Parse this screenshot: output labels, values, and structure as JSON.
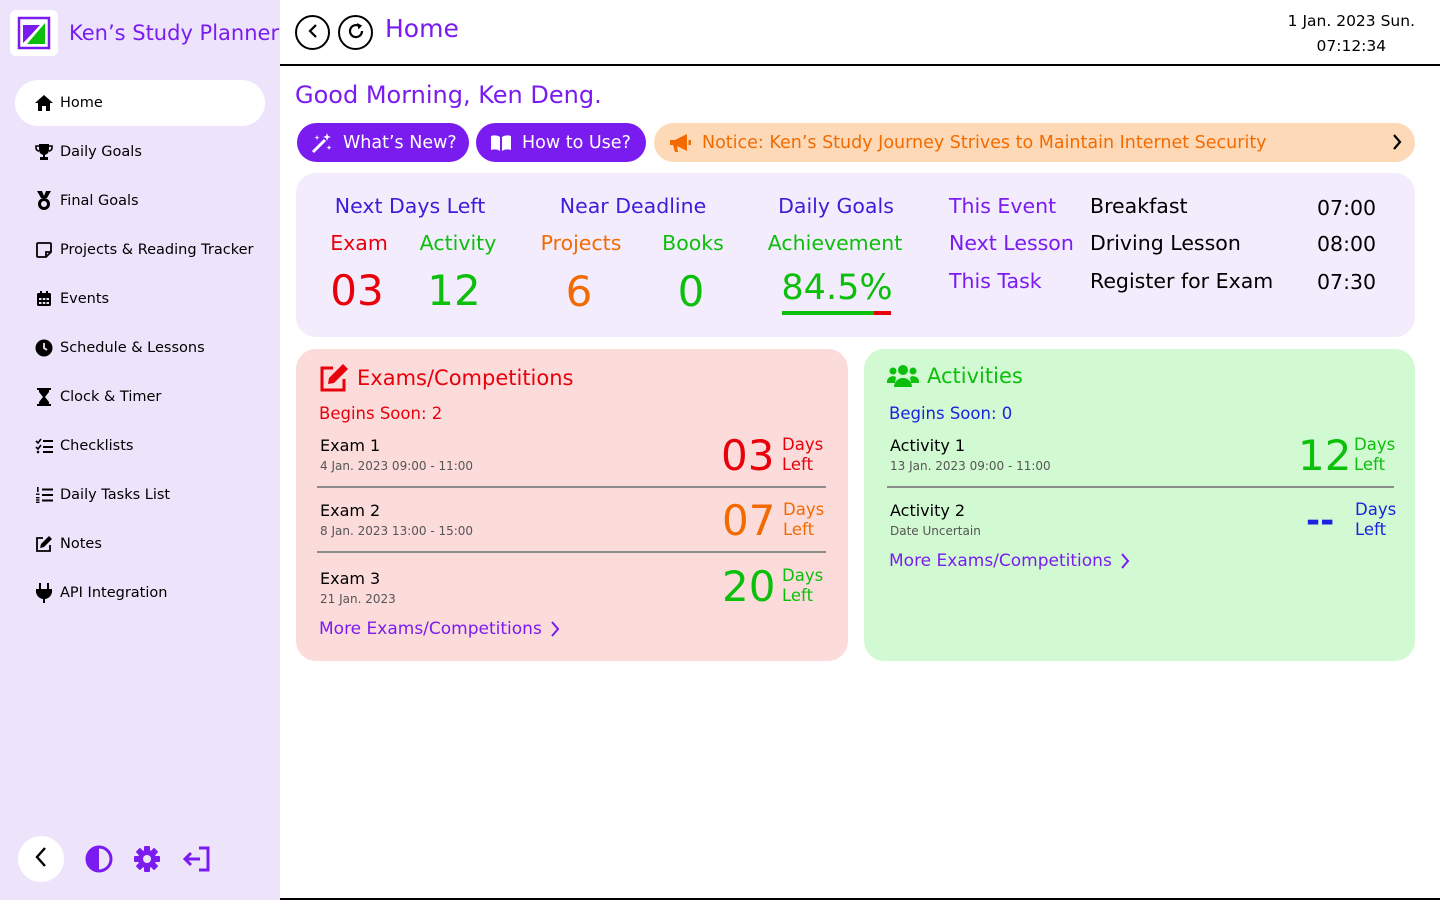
{
  "app": {
    "title": "Ken’s Study Planner"
  },
  "sidebar": {
    "items": [
      {
        "label": "Home",
        "icon": "house-icon",
        "active": true
      },
      {
        "label": "Daily Goals",
        "icon": "trophy-icon"
      },
      {
        "label": "Final Goals",
        "icon": "medal-icon"
      },
      {
        "label": "Projects & Reading Tracker",
        "icon": "note-icon"
      },
      {
        "label": "Events",
        "icon": "calendar-icon"
      },
      {
        "label": "Schedule & Lessons",
        "icon": "clock-icon"
      },
      {
        "label": "Clock & Timer",
        "icon": "hourglass-icon"
      },
      {
        "label": "Checklists",
        "icon": "checklist-icon"
      },
      {
        "label": "Daily Tasks List",
        "icon": "ordered-list-icon"
      },
      {
        "label": "Notes",
        "icon": "edit-icon"
      },
      {
        "label": "API Integration",
        "icon": "plug-icon"
      }
    ],
    "bottom_icons": [
      "chevron-left-icon",
      "contrast-icon",
      "gear-icon",
      "sign-out-icon"
    ]
  },
  "header": {
    "title": "Home",
    "date": "1 Jan. 2023 Sun.",
    "time": "07:12:34"
  },
  "greeting": "Good Morning, Ken Deng.",
  "buttons": {
    "whats_new": "What’s New?",
    "how_to_use": "How to Use?"
  },
  "notice": "Notice: Ken’s Study Journey Strives to Maintain Internet Security",
  "stats": {
    "next_days_left": {
      "title": "Next Days Left",
      "exam_label": "Exam",
      "exam_value": "03",
      "activity_label": "Activity",
      "activity_value": "12"
    },
    "near_deadline": {
      "title": "Near Deadline",
      "projects_label": "Projects",
      "projects_value": "6",
      "books_label": "Books",
      "books_value": "0"
    },
    "daily_goals": {
      "title": "Daily Goals",
      "achievement_label": "Achievement",
      "achievement_value": "84.5%",
      "achievement_fraction": 0.845
    },
    "events": [
      {
        "label": "This Event",
        "name": "Breakfast",
        "time": "07:00"
      },
      {
        "label": "Next Lesson",
        "name": "Driving Lesson",
        "time": "08:00"
      },
      {
        "label": "This Task",
        "name": "Register for Exam",
        "time": "07:30"
      }
    ]
  },
  "exams": {
    "title": "Exams/Competitions",
    "begins_soon": "Begins Soon: 2",
    "items": [
      {
        "name": "Exam 1",
        "date": "4 Jan. 2023 09:00 - 11:00",
        "days": "03",
        "color": "#e8000b"
      },
      {
        "name": "Exam 2",
        "date": "8 Jan. 2023 13:00 - 15:00",
        "days": "07",
        "color": "#f36b00"
      },
      {
        "name": "Exam 3",
        "date": "21 Jan. 2023",
        "days": "20",
        "color": "#0bbf0b"
      }
    ],
    "days_left_top": "Days",
    "days_left_bottom": "Left",
    "more": "More Exams/Competitions"
  },
  "activities": {
    "title": "Activities",
    "begins_soon": "Begins Soon: 0",
    "items": [
      {
        "name": "Activity 1",
        "date": "13 Jan. 2023 09:00 - 11:00",
        "days": "12",
        "color": "#0bbf0b"
      },
      {
        "name": "Activity 2",
        "date": "Date Uncertain",
        "days": "--",
        "color": "#1b22e0"
      }
    ],
    "days_left_top": "Days",
    "days_left_bottom": "Left",
    "more": "More Exams/Competitions"
  },
  "colors": {
    "accent": "#7a1bf0",
    "red": "#e8000b",
    "green": "#0bbf0b",
    "orange": "#f36b00",
    "blue": "#1b22e0"
  }
}
